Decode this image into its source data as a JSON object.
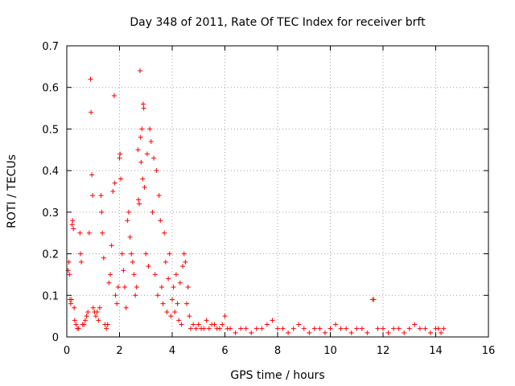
{
  "chart_data": {
    "type": "scatter",
    "title": "Day 348 of 2011, Rate Of TEC Index for receiver brft",
    "xlabel": "GPS time / hours",
    "ylabel": "ROTI / TECUs",
    "xlim": [
      0,
      16
    ],
    "ylim": [
      0,
      0.7
    ],
    "xticks": [
      0,
      2,
      4,
      6,
      8,
      10,
      12,
      14,
      16
    ],
    "yticks": [
      0,
      0.1,
      0.2,
      0.3,
      0.4,
      0.5,
      0.6,
      0.7
    ],
    "xtick_labels": [
      "0",
      "2",
      "4",
      "6",
      "8",
      "10",
      "12",
      "14",
      "16"
    ],
    "ytick_labels": [
      "0",
      "0.1",
      "0.2",
      "0.3",
      "0.4",
      "0.5",
      "0.6",
      "0.7"
    ],
    "grid": true,
    "marker": "plus",
    "color": "#ff0000",
    "series": [
      {
        "name": "ROTI",
        "points": [
          [
            0.05,
            0.16
          ],
          [
            0.08,
            0.18
          ],
          [
            0.1,
            0.15
          ],
          [
            0.12,
            0.09
          ],
          [
            0.15,
            0.08
          ],
          [
            0.18,
            0.09
          ],
          [
            0.2,
            0.27
          ],
          [
            0.22,
            0.28
          ],
          [
            0.25,
            0.26
          ],
          [
            0.28,
            0.07
          ],
          [
            0.3,
            0.04
          ],
          [
            0.35,
            0.03
          ],
          [
            0.4,
            0.02
          ],
          [
            0.45,
            0.02
          ],
          [
            0.5,
            0.25
          ],
          [
            0.52,
            0.2
          ],
          [
            0.55,
            0.18
          ],
          [
            0.6,
            0.03
          ],
          [
            0.65,
            0.03
          ],
          [
            0.7,
            0.04
          ],
          [
            0.75,
            0.05
          ],
          [
            0.8,
            0.06
          ],
          [
            0.85,
            0.25
          ],
          [
            0.9,
            0.62
          ],
          [
            0.92,
            0.54
          ],
          [
            0.95,
            0.39
          ],
          [
            0.98,
            0.34
          ],
          [
            1.0,
            0.07
          ],
          [
            1.05,
            0.06
          ],
          [
            1.1,
            0.05
          ],
          [
            1.15,
            0.06
          ],
          [
            1.2,
            0.04
          ],
          [
            1.25,
            0.07
          ],
          [
            1.3,
            0.34
          ],
          [
            1.32,
            0.3
          ],
          [
            1.35,
            0.25
          ],
          [
            1.4,
            0.19
          ],
          [
            1.45,
            0.03
          ],
          [
            1.5,
            0.02
          ],
          [
            1.55,
            0.03
          ],
          [
            1.6,
            0.13
          ],
          [
            1.65,
            0.15
          ],
          [
            1.7,
            0.22
          ],
          [
            1.75,
            0.35
          ],
          [
            1.8,
            0.58
          ],
          [
            1.82,
            0.37
          ],
          [
            1.85,
            0.1
          ],
          [
            1.9,
            0.08
          ],
          [
            1.95,
            0.12
          ],
          [
            2.0,
            0.43
          ],
          [
            2.02,
            0.44
          ],
          [
            2.05,
            0.38
          ],
          [
            2.1,
            0.2
          ],
          [
            2.15,
            0.16
          ],
          [
            2.2,
            0.12
          ],
          [
            2.25,
            0.07
          ],
          [
            2.3,
            0.28
          ],
          [
            2.35,
            0.3
          ],
          [
            2.4,
            0.24
          ],
          [
            2.45,
            0.2
          ],
          [
            2.5,
            0.18
          ],
          [
            2.55,
            0.15
          ],
          [
            2.6,
            0.1
          ],
          [
            2.65,
            0.12
          ],
          [
            2.7,
            0.45
          ],
          [
            2.72,
            0.33
          ],
          [
            2.75,
            0.32
          ],
          [
            2.78,
            0.64
          ],
          [
            2.8,
            0.48
          ],
          [
            2.82,
            0.42
          ],
          [
            2.85,
            0.5
          ],
          [
            2.88,
            0.38
          ],
          [
            2.9,
            0.56
          ],
          [
            2.92,
            0.55
          ],
          [
            2.95,
            0.36
          ],
          [
            3.0,
            0.2
          ],
          [
            3.05,
            0.44
          ],
          [
            3.1,
            0.17
          ],
          [
            3.15,
            0.5
          ],
          [
            3.2,
            0.47
          ],
          [
            3.25,
            0.3
          ],
          [
            3.3,
            0.43
          ],
          [
            3.35,
            0.15
          ],
          [
            3.4,
            0.4
          ],
          [
            3.45,
            0.1
          ],
          [
            3.5,
            0.34
          ],
          [
            3.55,
            0.28
          ],
          [
            3.6,
            0.12
          ],
          [
            3.65,
            0.08
          ],
          [
            3.7,
            0.25
          ],
          [
            3.75,
            0.18
          ],
          [
            3.8,
            0.06
          ],
          [
            3.85,
            0.14
          ],
          [
            3.9,
            0.2
          ],
          [
            3.95,
            0.05
          ],
          [
            4.0,
            0.09
          ],
          [
            4.05,
            0.12
          ],
          [
            4.1,
            0.06
          ],
          [
            4.15,
            0.15
          ],
          [
            4.2,
            0.08
          ],
          [
            4.25,
            0.04
          ],
          [
            4.3,
            0.13
          ],
          [
            4.35,
            0.03
          ],
          [
            4.4,
            0.17
          ],
          [
            4.45,
            0.2
          ],
          [
            4.5,
            0.18
          ],
          [
            4.55,
            0.08
          ],
          [
            4.6,
            0.12
          ],
          [
            4.65,
            0.05
          ],
          [
            4.7,
            0.02
          ],
          [
            4.8,
            0.03
          ],
          [
            4.9,
            0.02
          ],
          [
            5.0,
            0.03
          ],
          [
            5.1,
            0.02
          ],
          [
            5.2,
            0.02
          ],
          [
            5.3,
            0.04
          ],
          [
            5.4,
            0.02
          ],
          [
            5.5,
            0.03
          ],
          [
            5.6,
            0.03
          ],
          [
            5.7,
            0.02
          ],
          [
            5.8,
            0.02
          ],
          [
            5.9,
            0.03
          ],
          [
            6.0,
            0.05
          ],
          [
            6.1,
            0.02
          ],
          [
            6.2,
            0.02
          ],
          [
            6.4,
            0.01
          ],
          [
            6.6,
            0.02
          ],
          [
            6.8,
            0.02
          ],
          [
            7.0,
            0.01
          ],
          [
            7.2,
            0.02
          ],
          [
            7.4,
            0.02
          ],
          [
            7.6,
            0.03
          ],
          [
            7.8,
            0.04
          ],
          [
            8.0,
            0.02
          ],
          [
            8.2,
            0.02
          ],
          [
            8.4,
            0.01
          ],
          [
            8.6,
            0.02
          ],
          [
            8.8,
            0.03
          ],
          [
            9.0,
            0.02
          ],
          [
            9.2,
            0.01
          ],
          [
            9.4,
            0.02
          ],
          [
            9.6,
            0.02
          ],
          [
            9.8,
            0.01
          ],
          [
            10.0,
            0.02
          ],
          [
            10.2,
            0.03
          ],
          [
            10.4,
            0.02
          ],
          [
            10.6,
            0.02
          ],
          [
            10.8,
            0.01
          ],
          [
            11.0,
            0.02
          ],
          [
            11.2,
            0.02
          ],
          [
            11.4,
            0.01
          ],
          [
            11.6,
            0.09
          ],
          [
            11.65,
            0.09
          ],
          [
            11.8,
            0.02
          ],
          [
            12.0,
            0.02
          ],
          [
            12.2,
            0.01
          ],
          [
            12.4,
            0.02
          ],
          [
            12.6,
            0.02
          ],
          [
            12.8,
            0.01
          ],
          [
            13.0,
            0.02
          ],
          [
            13.2,
            0.03
          ],
          [
            13.4,
            0.02
          ],
          [
            13.6,
            0.02
          ],
          [
            13.8,
            0.01
          ],
          [
            14.0,
            0.02
          ],
          [
            14.1,
            0.02
          ],
          [
            14.2,
            0.01
          ],
          [
            14.3,
            0.02
          ]
        ]
      }
    ]
  }
}
